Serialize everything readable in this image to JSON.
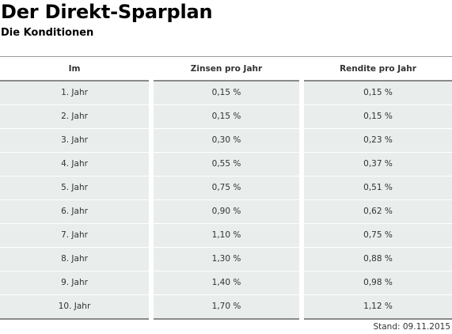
{
  "title": "Der Direkt-Sparplan",
  "subtitle": "Die Konditionen",
  "table": {
    "headers": [
      "Im",
      "Zinsen pro Jahr",
      "Rendite pro Jahr"
    ],
    "rows": [
      [
        "1. Jahr",
        "0,15 %",
        "0,15 %"
      ],
      [
        "2. Jahr",
        "0,15 %",
        "0,15 %"
      ],
      [
        "3. Jahr",
        "0,30 %",
        "0,23 %"
      ],
      [
        "4. Jahr",
        "0,55 %",
        "0,37 %"
      ],
      [
        "5. Jahr",
        "0,75 %",
        "0,51 %"
      ],
      [
        "6. Jahr",
        "0,90 %",
        "0,62 %"
      ],
      [
        "7. Jahr",
        "1,10 %",
        "0,75 %"
      ],
      [
        "8. Jahr",
        "1,30 %",
        "0,88 %"
      ],
      [
        "9. Jahr",
        "1,40 %",
        "0,98 %"
      ],
      [
        "10. Jahr",
        "1,70 %",
        "1,12 %"
      ]
    ]
  },
  "footnote": "Stand: 09.11.2015",
  "colors": {
    "cell_background": "#e9edec",
    "rule": "#8a8a8a",
    "text": "#333333"
  }
}
